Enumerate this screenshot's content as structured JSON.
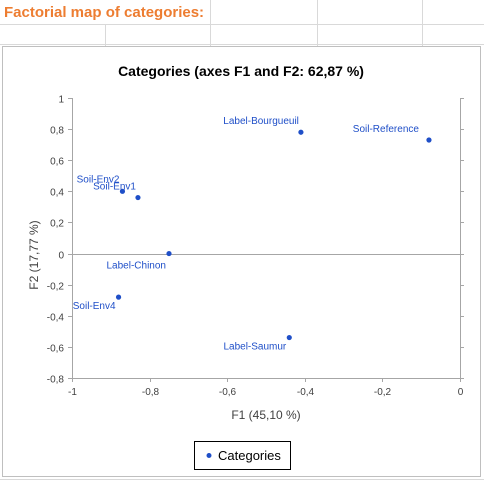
{
  "sheet": {
    "title": "Factorial map of categories:"
  },
  "chart_data": {
    "type": "scatter",
    "title": "Categories (axes F1 and F2: 62,87 %)",
    "xlabel": "F1 (45,10 %)",
    "ylabel": "F2 (17,77 %)",
    "xlim": [
      -1,
      0
    ],
    "ylim": [
      -0.8,
      1
    ],
    "xticks": [
      "-1",
      "-0,8",
      "-0,6",
      "-0,4",
      "-0,2",
      "0"
    ],
    "yticks": [
      "1",
      "0,8",
      "0,6",
      "0,4",
      "0,2",
      "0",
      "-0,2",
      "-0,4",
      "-0,6",
      "-0,8"
    ],
    "grid": false,
    "legend": "bottom",
    "series": [
      {
        "name": "Categories",
        "color": "#1F4FC8",
        "points": [
          {
            "label": "Label-Bourgueuil",
            "x": -0.41,
            "y": 0.78
          },
          {
            "label": "Soil-Reference",
            "x": -0.08,
            "y": 0.73
          },
          {
            "label": "Soil-Env2",
            "x": -0.87,
            "y": 0.4
          },
          {
            "label": "Soil-Env1",
            "x": -0.83,
            "y": 0.36
          },
          {
            "label": "Label-Chinon",
            "x": -0.75,
            "y": 0.0
          },
          {
            "label": "Soil-Env4",
            "x": -0.88,
            "y": -0.28
          },
          {
            "label": "Label-Saumur",
            "x": -0.44,
            "y": -0.54
          }
        ]
      }
    ]
  }
}
